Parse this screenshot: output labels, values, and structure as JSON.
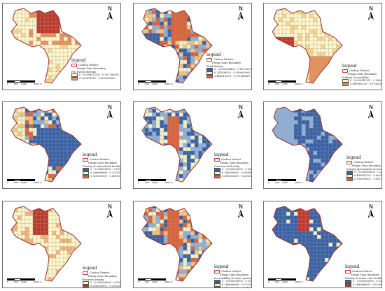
{
  "north_label": "N",
  "legend_word": "legend",
  "boundary_label_1": "Caohua District",
  "boundary_label_2": "Fringe Zone Boundary",
  "scale_labels": [
    "0",
    "500",
    "1000",
    "2000 m"
  ],
  "panels": [
    {
      "subtitle": "POI hybrid entropy",
      "classes": [
        "0 - 0.000022116 - 0.151768815",
        "0.151768816 - 0.321478912",
        "0.321478913 - 0.500000000",
        "0.500000001 - 0.733108711"
      ],
      "colors": [
        "#fff6c9",
        "#f7d48a",
        "#e8925a",
        "#c0392b"
      ]
    },
    {
      "subtitle": "Road density",
      "classes": [
        "0 - 0.000124418 - 0.131390931",
        "0.131390932 - 0.247638932",
        "0.247638933 - 0.380000000",
        "0.380000001 - 0.460813499",
        "0.460813500 - 0.571666667"
      ],
      "colors": [
        "#3a62a8",
        "#8fb0d9",
        "#f1f1c8",
        "#f3c47d",
        "#d9643b"
      ]
    },
    {
      "subtitle": "Subway accessibility",
      "classes": [
        "0 - 0.000341291 - 0.286666667",
        "0.286666668 - 0.489961319",
        "0.489961320 - 0.673431067",
        "0.673431068 - 0.851736184"
      ],
      "colors": [
        "#fff6c9",
        "#f7d48a",
        "#e8925a",
        "#c0392b"
      ]
    },
    {
      "subtitle": "Density of educational facilities",
      "classes": [
        "0 - 0.000000000 - 0.133188111",
        "0.133188112 - 0.266666667",
        "0.266666668 - 0.373333333",
        "0.373333334 - 0.520000000",
        "0.520000001 - 0.881551243"
      ],
      "colors": [
        "#3a62a8",
        "#8fb0d9",
        "#f1f1c8",
        "#f3c47d",
        "#d9643b"
      ]
    },
    {
      "subtitle": "Commercial density",
      "classes": [
        "0 - 0.000000000 - 0.100000000",
        "0.100000001 - 0.200000000",
        "0.200000001 - 0.300000000",
        "0.300000001 - 0.400000000",
        "0.400000001 - 0.600000000"
      ],
      "colors": [
        "#3a62a8",
        "#8fb0d9",
        "#f1f1c8",
        "#f3c47d",
        "#d9643b"
      ]
    },
    {
      "subtitle": "Density government accessibility",
      "classes": [
        "0 - 0.000000000 - 0.286666667",
        "0.286666668 - 0.489961319",
        "0.489961320 - 0.600000000",
        "0.600000001 - 0.700000000",
        "0.700000001 - 0.851736184"
      ],
      "colors": [
        "#3a62a8",
        "#8fb0d9",
        "#f1f1c8",
        "#f3c47d",
        "#d9643b"
      ]
    },
    {
      "subtitle": "Business density",
      "classes": [
        "0 - 0.000000000 - 0.100000000",
        "0.100000001 - 0.200000000",
        "0.200000001 - 0.333333333"
      ],
      "colors": [
        "#fff6c9",
        "#f3b27a",
        "#c0392b"
      ]
    },
    {
      "subtitle": "Accessibility of water systems",
      "classes": [
        "0 - 0.000000000 - 0.133188111",
        "0.133188112 - 0.266666667",
        "0.266666668 - 0.373333333",
        "0.373333334 - 0.520000000",
        "0.520000001 - 0.881551243"
      ],
      "colors": [
        "#3a62a8",
        "#8fb0d9",
        "#f1f1c8",
        "#f3c47d",
        "#d9643b"
      ]
    },
    {
      "subtitle": "Density of senior care facilities",
      "classes": [
        "0 - 0.000000000 - 0.133188111",
        "0.133188112 - 0.266666667",
        "0.266666668 - 0.520000000"
      ],
      "colors": [
        "#3a62a8",
        "#f1f1c8",
        "#c0392b"
      ]
    }
  ]
}
